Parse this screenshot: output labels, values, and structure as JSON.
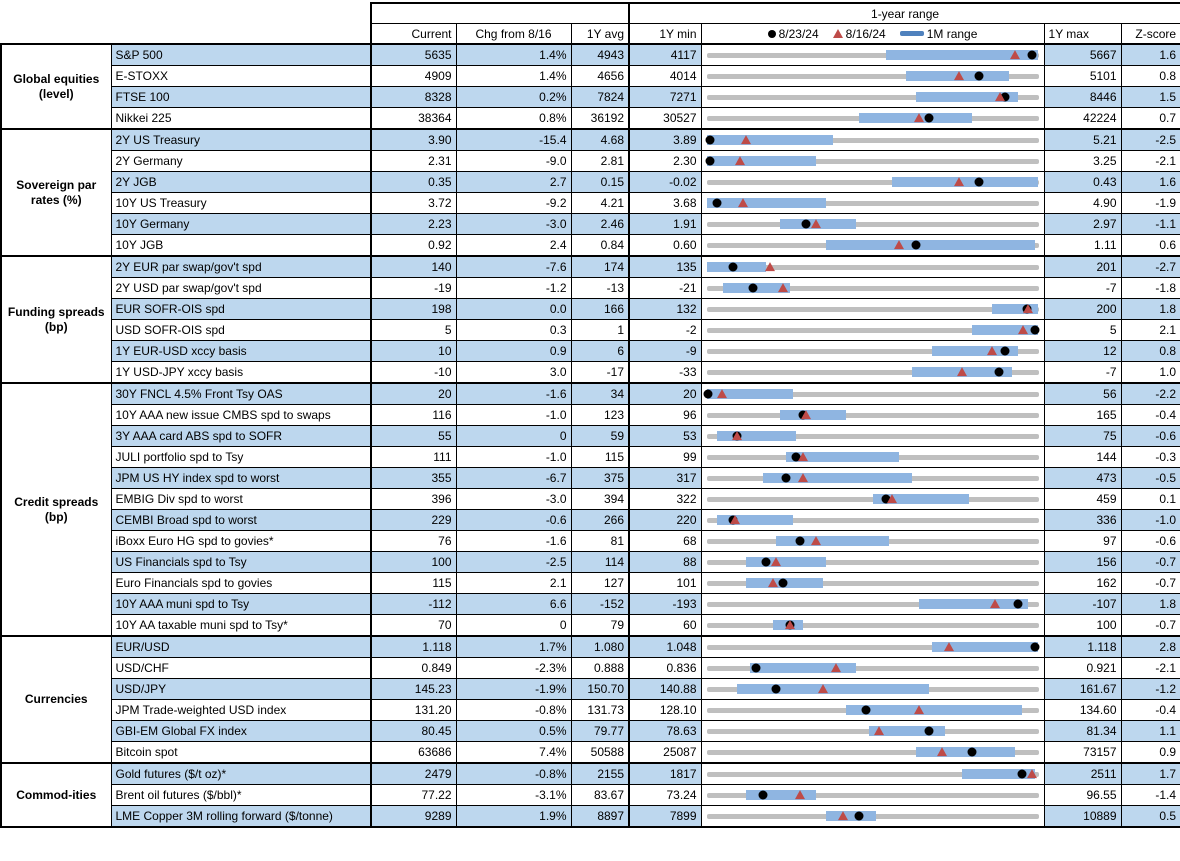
{
  "header": {
    "range_title": "1-year range",
    "columns": {
      "current": "Current",
      "chg": "Chg from 8/16",
      "avg": "1Y avg",
      "min": "1Y min",
      "max": "1Y max",
      "z": "Z-score"
    },
    "legend": {
      "dot_label": "8/23/24",
      "triangle_label": "8/16/24",
      "bar_label": "1M range"
    }
  },
  "colors": {
    "row_shade": "#BDD7EE",
    "range_line": "#BFBFBF",
    "month_bar": "#8FB5E1",
    "dot": "#000000",
    "triangle": "#BE4B48",
    "legend_bar": "#4F81BD"
  },
  "chart_data": {
    "type": "table",
    "description": "Cross-asset market monitor. Each row shows Current, Chg from 8/16, 1Y avg, 1Y min, a 1-year range strip chart (black dot = 8/23/24 level, red triangle = 8/16/24 level, blue bar = 1M range; positions normalized 0-1 between 1Y min and 1Y max), 1Y max and Z-score.",
    "groups": [
      {
        "label": "Global equities (level)",
        "rows": [
          {
            "name": "S&P 500",
            "current": "5635",
            "chg": "1.4%",
            "avg": "4943",
            "min": "4117",
            "max": "5667",
            "z": "1.6",
            "bar": [
              0.54,
              1.0
            ],
            "dot": 0.98,
            "tri": 0.93
          },
          {
            "name": "E-STOXX",
            "current": "4909",
            "chg": "1.4%",
            "avg": "4656",
            "min": "4014",
            "max": "5101",
            "z": "0.8",
            "bar": [
              0.6,
              0.91
            ],
            "dot": 0.82,
            "tri": 0.76
          },
          {
            "name": "FTSE 100",
            "current": "8328",
            "chg": "0.2%",
            "avg": "7824",
            "min": "7271",
            "max": "8446",
            "z": "1.5",
            "bar": [
              0.63,
              0.94
            ],
            "dot": 0.9,
            "tri": 0.885
          },
          {
            "name": "Nikkei 225",
            "current": "38364",
            "chg": "0.8%",
            "avg": "36192",
            "min": "30527",
            "max": "42224",
            "z": "0.7",
            "bar": [
              0.46,
              0.8
            ],
            "dot": 0.67,
            "tri": 0.64
          }
        ]
      },
      {
        "label": "Sovereign par rates (%)",
        "rows": [
          {
            "name": "2Y US Treasury",
            "current": "3.90",
            "chg": "-15.4",
            "avg": "4.68",
            "min": "3.89",
            "max": "5.21",
            "z": "-2.5",
            "bar": [
              0.0,
              0.38
            ],
            "dot": 0.01,
            "tri": 0.12
          },
          {
            "name": "2Y Germany",
            "current": "2.31",
            "chg": "-9.0",
            "avg": "2.81",
            "min": "2.30",
            "max": "3.25",
            "z": "-2.1",
            "bar": [
              0.0,
              0.33
            ],
            "dot": 0.01,
            "tri": 0.1
          },
          {
            "name": "2Y JGB",
            "current": "0.35",
            "chg": "2.7",
            "avg": "0.15",
            "min": "-0.02",
            "max": "0.43",
            "z": "1.6",
            "bar": [
              0.56,
              1.0
            ],
            "dot": 0.82,
            "tri": 0.76
          },
          {
            "name": "10Y US Treasury",
            "current": "3.72",
            "chg": "-9.2",
            "avg": "4.21",
            "min": "3.68",
            "max": "4.90",
            "z": "-1.9",
            "bar": [
              0.0,
              0.36
            ],
            "dot": 0.03,
            "tri": 0.11
          },
          {
            "name": "10Y Germany",
            "current": "2.23",
            "chg": "-3.0",
            "avg": "2.46",
            "min": "1.91",
            "max": "2.97",
            "z": "-1.1",
            "bar": [
              0.22,
              0.45
            ],
            "dot": 0.3,
            "tri": 0.33
          },
          {
            "name": "10Y JGB",
            "current": "0.92",
            "chg": "2.4",
            "avg": "0.84",
            "min": "0.60",
            "max": "1.11",
            "z": "0.6",
            "bar": [
              0.36,
              0.99
            ],
            "dot": 0.63,
            "tri": 0.58
          }
        ]
      },
      {
        "label": "Funding spreads (bp)",
        "rows": [
          {
            "name": "2Y EUR par swap/gov't spd",
            "current": "140",
            "chg": "-7.6",
            "avg": "174",
            "min": "135",
            "max": "201",
            "z": "-2.7",
            "bar": [
              0.0,
              0.18
            ],
            "dot": 0.08,
            "tri": 0.19
          },
          {
            "name": "2Y USD par swap/gov't spd",
            "current": "-19",
            "chg": "-1.2",
            "avg": "-13",
            "min": "-21",
            "max": "-7",
            "z": "-1.8",
            "bar": [
              0.05,
              0.25
            ],
            "dot": 0.14,
            "tri": 0.23
          },
          {
            "name": "EUR SOFR-OIS spd",
            "current": "198",
            "chg": "0.0",
            "avg": "166",
            "min": "132",
            "max": "200",
            "z": "1.8",
            "bar": [
              0.86,
              1.0
            ],
            "dot": 0.965,
            "tri": 0.97
          },
          {
            "name": "USD SOFR-OIS spd",
            "current": "5",
            "chg": "0.3",
            "avg": "1",
            "min": "-2",
            "max": "5",
            "z": "2.1",
            "bar": [
              0.8,
              1.0
            ],
            "dot": 0.99,
            "tri": 0.955
          },
          {
            "name": "1Y EUR-USD xccy basis",
            "current": "10",
            "chg": "0.9",
            "avg": "6",
            "min": "-9",
            "max": "12",
            "z": "0.8",
            "bar": [
              0.68,
              0.94
            ],
            "dot": 0.9,
            "tri": 0.86
          },
          {
            "name": "1Y USD-JPY xccy basis",
            "current": "-10",
            "chg": "3.0",
            "avg": "-17",
            "min": "-33",
            "max": "-7",
            "z": "1.0",
            "bar": [
              0.62,
              0.92
            ],
            "dot": 0.88,
            "tri": 0.77
          }
        ]
      },
      {
        "label": "Credit spreads (bp)",
        "rows": [
          {
            "name": "30Y FNCL 4.5% Front Tsy OAS",
            "current": "20",
            "chg": "-1.6",
            "avg": "34",
            "min": "20",
            "max": "56",
            "z": "-2.2",
            "bar": [
              0.0,
              0.26
            ],
            "dot": 0.005,
            "tri": 0.045
          },
          {
            "name": "10Y AAA new issue CMBS spd to swaps",
            "current": "116",
            "chg": "-1.0",
            "avg": "123",
            "min": "96",
            "max": "165",
            "z": "-0.4",
            "bar": [
              0.22,
              0.42
            ],
            "dot": 0.29,
            "tri": 0.3
          },
          {
            "name": "3Y AAA card ABS spd to SOFR",
            "current": "55",
            "chg": "0",
            "avg": "59",
            "min": "53",
            "max": "75",
            "z": "-0.6",
            "bar": [
              0.03,
              0.27
            ],
            "dot": 0.09,
            "tri": 0.09
          },
          {
            "name": "JULI portfolio spd to Tsy",
            "current": "111",
            "chg": "-1.0",
            "avg": "115",
            "min": "99",
            "max": "144",
            "z": "-0.3",
            "bar": [
              0.24,
              0.58
            ],
            "dot": 0.27,
            "tri": 0.29
          },
          {
            "name": "JPM US HY index spd to worst",
            "current": "355",
            "chg": "-6.7",
            "avg": "375",
            "min": "317",
            "max": "473",
            "z": "-0.5",
            "bar": [
              0.17,
              0.62
            ],
            "dot": 0.24,
            "tri": 0.29
          },
          {
            "name": "EMBIG Div spd to worst",
            "current": "396",
            "chg": "-3.0",
            "avg": "394",
            "min": "322",
            "max": "459",
            "z": "0.1",
            "bar": [
              0.5,
              0.79
            ],
            "dot": 0.54,
            "tri": 0.56
          },
          {
            "name": "CEMBI Broad spd to worst",
            "current": "229",
            "chg": "-0.6",
            "avg": "266",
            "min": "220",
            "max": "336",
            "z": "-1.0",
            "bar": [
              0.03,
              0.26
            ],
            "dot": 0.08,
            "tri": 0.085
          },
          {
            "name": "iBoxx Euro HG spd to govies*",
            "current": "76",
            "chg": "-1.6",
            "avg": "81",
            "min": "68",
            "max": "97",
            "z": "-0.6",
            "bar": [
              0.21,
              0.55
            ],
            "dot": 0.28,
            "tri": 0.33
          },
          {
            "name": "US Financials spd to Tsy",
            "current": "100",
            "chg": "-2.5",
            "avg": "114",
            "min": "88",
            "max": "156",
            "z": "-0.7",
            "bar": [
              0.12,
              0.36
            ],
            "dot": 0.18,
            "tri": 0.21
          },
          {
            "name": "Euro Financials spd to govies",
            "current": "115",
            "chg": "2.1",
            "avg": "127",
            "min": "101",
            "max": "162",
            "z": "-0.7",
            "bar": [
              0.12,
              0.35
            ],
            "dot": 0.23,
            "tri": 0.2
          },
          {
            "name": "10Y AAA muni spd to Tsy",
            "current": "-112",
            "chg": "6.6",
            "avg": "-152",
            "min": "-193",
            "max": "-107",
            "z": "1.8",
            "bar": [
              0.64,
              0.97
            ],
            "dot": 0.94,
            "tri": 0.87
          },
          {
            "name": "10Y AA taxable muni spd to Tsy*",
            "current": "70",
            "chg": "0",
            "avg": "79",
            "min": "60",
            "max": "100",
            "z": "-0.7",
            "bar": [
              0.2,
              0.29
            ],
            "dot": 0.25,
            "tri": 0.25
          }
        ]
      },
      {
        "label": "Currencies",
        "rows": [
          {
            "name": "EUR/USD",
            "current": "1.118",
            "chg": "1.7%",
            "avg": "1.080",
            "min": "1.048",
            "max": "1.118",
            "z": "2.8",
            "bar": [
              0.68,
              1.0
            ],
            "dot": 0.99,
            "tri": 0.73
          },
          {
            "name": "USD/CHF",
            "current": "0.849",
            "chg": "-2.3%",
            "avg": "0.888",
            "min": "0.836",
            "max": "0.921",
            "z": "-2.1",
            "bar": [
              0.13,
              0.45
            ],
            "dot": 0.15,
            "tri": 0.39
          },
          {
            "name": "USD/JPY",
            "current": "145.23",
            "chg": "-1.9%",
            "avg": "150.70",
            "min": "140.88",
            "max": "161.67",
            "z": "-1.2",
            "bar": [
              0.09,
              0.67
            ],
            "dot": 0.21,
            "tri": 0.35
          },
          {
            "name": "JPM Trade-weighted USD index",
            "current": "131.20",
            "chg": "-0.8%",
            "avg": "131.73",
            "min": "128.10",
            "max": "134.60",
            "z": "-0.4",
            "bar": [
              0.42,
              0.95
            ],
            "dot": 0.48,
            "tri": 0.64
          },
          {
            "name": "GBI-EM Global FX index",
            "current": "80.45",
            "chg": "0.5%",
            "avg": "79.77",
            "min": "78.63",
            "max": "81.34",
            "z": "1.1",
            "bar": [
              0.49,
              0.72
            ],
            "dot": 0.67,
            "tri": 0.52
          },
          {
            "name": "Bitcoin spot",
            "current": "63686",
            "chg": "7.4%",
            "avg": "50588",
            "min": "25087",
            "max": "73157",
            "z": "0.9",
            "bar": [
              0.63,
              0.93
            ],
            "dot": 0.8,
            "tri": 0.71
          }
        ]
      },
      {
        "label": "Commod-ities",
        "rows": [
          {
            "name": "Gold futures ($/t oz)*",
            "current": "2479",
            "chg": "-0.8%",
            "avg": "2155",
            "min": "1817",
            "max": "2511",
            "z": "1.7",
            "bar": [
              0.77,
              0.99
            ],
            "dot": 0.95,
            "tri": 0.98
          },
          {
            "name": "Brent oil futures ($/bbl)*",
            "current": "77.22",
            "chg": "-3.1%",
            "avg": "83.67",
            "min": "73.24",
            "max": "96.55",
            "z": "-1.4",
            "bar": [
              0.12,
              0.33
            ],
            "dot": 0.17,
            "tri": 0.28
          },
          {
            "name": "LME Copper 3M rolling forward ($/tonne)",
            "current": "9289",
            "chg": "1.9%",
            "avg": "8897",
            "min": "7899",
            "max": "10889",
            "z": "0.5",
            "bar": [
              0.36,
              0.51
            ],
            "dot": 0.46,
            "tri": 0.41
          }
        ]
      }
    ]
  }
}
